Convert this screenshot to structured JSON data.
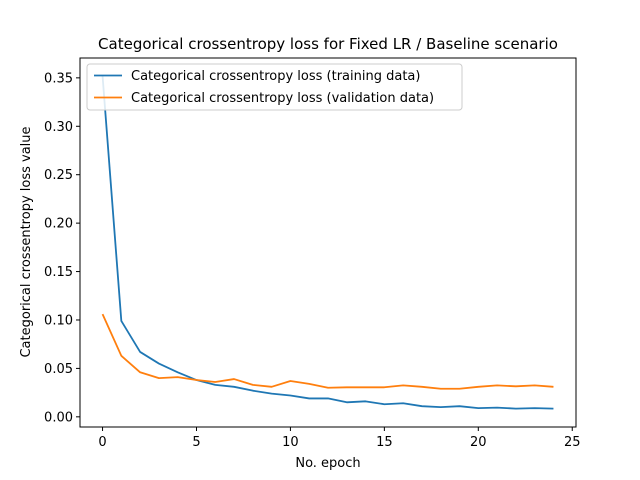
{
  "chart_data": {
    "type": "line",
    "title": "Categorical crossentropy loss for Fixed LR / Baseline scenario",
    "xlabel": "No. epoch",
    "ylabel": "Categorical crossentropy loss value",
    "xlim": [
      -1.2,
      25.2
    ],
    "ylim": [
      -0.0105,
      0.3705
    ],
    "xticks": [
      0,
      5,
      10,
      15,
      20,
      25
    ],
    "xtick_labels": [
      "0",
      "5",
      "10",
      "15",
      "20",
      "25"
    ],
    "yticks": [
      0.0,
      0.05,
      0.1,
      0.15,
      0.2,
      0.25,
      0.3,
      0.35
    ],
    "ytick_labels": [
      "0.00",
      "0.05",
      "0.10",
      "0.15",
      "0.20",
      "0.25",
      "0.30",
      "0.35"
    ],
    "grid": false,
    "legend_position": "top-left",
    "x": [
      0,
      1,
      2,
      3,
      4,
      5,
      6,
      7,
      8,
      9,
      10,
      11,
      12,
      13,
      14,
      15,
      16,
      17,
      18,
      19,
      20,
      21,
      22,
      23,
      24
    ],
    "series": [
      {
        "name": "Categorical crossentropy loss (training data)",
        "color": "#1f77b4",
        "values": [
          0.352,
          0.099,
          0.067,
          0.055,
          0.046,
          0.038,
          0.033,
          0.031,
          0.027,
          0.024,
          0.022,
          0.019,
          0.019,
          0.015,
          0.016,
          0.013,
          0.014,
          0.011,
          0.01,
          0.011,
          0.009,
          0.0095,
          0.0085,
          0.009,
          0.0085
        ]
      },
      {
        "name": "Categorical crossentropy loss (validation data)",
        "color": "#ff7f0e",
        "values": [
          0.106,
          0.063,
          0.046,
          0.04,
          0.041,
          0.038,
          0.036,
          0.039,
          0.033,
          0.031,
          0.037,
          0.034,
          0.03,
          0.0305,
          0.0305,
          0.0305,
          0.0325,
          0.031,
          0.029,
          0.029,
          0.031,
          0.0325,
          0.0315,
          0.0325,
          0.031
        ]
      }
    ]
  }
}
